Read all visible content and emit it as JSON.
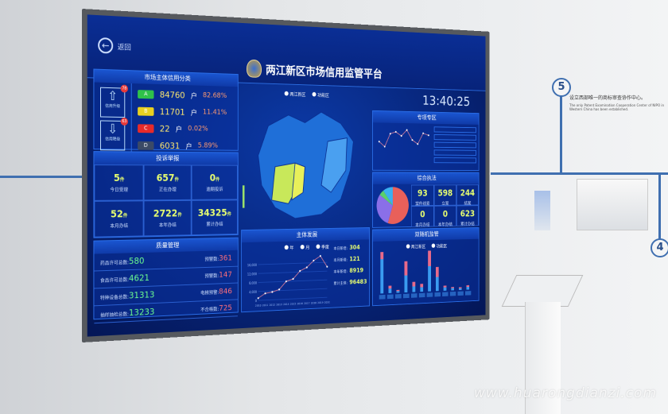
{
  "wall": {
    "step5": "5",
    "step4": "4",
    "caption_cn": "设立西部唯一的商标审查协作中心。",
    "caption_en": "The only Patent Examination Cooperation Center of NIPO in Western China has been established.",
    "watermark": "www.huarongdianzi.com"
  },
  "header": {
    "back_label": "返回",
    "title": "两江新区市场信用监管平台",
    "time": "13:40:25"
  },
  "credit": {
    "title": "市场主体信用分类",
    "upgrade_label": "信用升级",
    "downgrade_label": "信用降级",
    "upgrade_count": "78",
    "downgrade_count": "63",
    "unit": "户",
    "rows": [
      {
        "grade": "A",
        "count": "84760",
        "pct": "82.68%",
        "color": "#2fc24a"
      },
      {
        "grade": "B",
        "count": "11701",
        "pct": "11.41%",
        "color": "#e8d020"
      },
      {
        "grade": "C",
        "count": "22",
        "pct": "0.02%",
        "color": "#e82a2a"
      },
      {
        "grade": "D",
        "count": "6031",
        "pct": "5.89%",
        "color": "#3b4a66"
      }
    ]
  },
  "complaints": {
    "title": "投诉举报",
    "unit": "件",
    "cells": [
      {
        "value": "5",
        "label": "今日受理"
      },
      {
        "value": "657",
        "label": "正在办理"
      },
      {
        "value": "0",
        "label": "逾期投诉"
      },
      {
        "value": "52",
        "label": "本月办结"
      },
      {
        "value": "2722",
        "label": "本年办结"
      },
      {
        "value": "34325",
        "label": "累计办结"
      }
    ]
  },
  "quality": {
    "title": "质量管理",
    "rows": [
      {
        "l": "药品许可总数:",
        "v": "580",
        "l2": "预警数:",
        "v2": "361"
      },
      {
        "l": "食品许可总数:",
        "v": "4621",
        "l2": "预警数:",
        "v2": "147"
      },
      {
        "l": "特种设备总数:",
        "v": "31313",
        "l2": "电梯预警:",
        "v2": "846"
      },
      {
        "l": "抽样抽检总数:",
        "v": "13233",
        "l2": "不合格数:",
        "v2": "725"
      }
    ]
  },
  "map": {
    "legend": [
      "两江新区",
      "功能区"
    ]
  },
  "development": {
    "title": "主体发展",
    "legend": [
      "年",
      "月",
      "季度"
    ],
    "stats": [
      {
        "label": "本日新增:",
        "value": "304"
      },
      {
        "label": "本月新增:",
        "value": "121"
      },
      {
        "label": "本年新增:",
        "value": "8919"
      },
      {
        "label": "累计主体:",
        "value": "96483"
      }
    ],
    "chart": {
      "x": [
        "2010",
        "2011",
        "2012",
        "2013",
        "2014",
        "2015",
        "2016",
        "2017",
        "2018",
        "2019",
        "2020"
      ],
      "y": [
        1000,
        3000,
        3500,
        4500,
        8000,
        9000,
        12500,
        14000,
        17000,
        19000,
        14000
      ],
      "yticks": [
        "0",
        "4,000",
        "8,000",
        "12,000",
        "16,000"
      ],
      "ymax": 20000
    }
  },
  "special": {
    "title": "专项专区",
    "y": [
      120,
      95,
      160,
      170,
      150,
      180,
      130,
      110,
      165,
      155
    ]
  },
  "enforcement": {
    "title": "综合执法",
    "pie": [
      {
        "v": 55,
        "c": "#e8605a"
      },
      {
        "v": 30,
        "c": "#8a6fe8"
      },
      {
        "v": 5,
        "c": "#5ad06a"
      },
      {
        "v": 10,
        "c": "#3ab0f0"
      }
    ],
    "cells": [
      {
        "value": "93",
        "label": "案件线索"
      },
      {
        "value": "598",
        "label": "立案"
      },
      {
        "value": "244",
        "label": "结案"
      },
      {
        "value": "0",
        "label": "本月办结"
      },
      {
        "value": "0",
        "label": "本年办结"
      },
      {
        "value": "623",
        "label": "累计办结"
      }
    ]
  },
  "supervision": {
    "title": "双随机监管",
    "legend": [
      "两江新区",
      "功能区"
    ],
    "bars": [
      [
        60,
        40
      ],
      [
        8,
        5
      ],
      [
        3,
        2
      ],
      [
        30,
        25
      ],
      [
        10,
        8
      ],
      [
        8,
        6
      ],
      [
        45,
        30
      ],
      [
        25,
        18
      ],
      [
        6,
        3
      ],
      [
        4,
        2
      ],
      [
        3,
        2
      ],
      [
        5,
        3
      ]
    ]
  }
}
